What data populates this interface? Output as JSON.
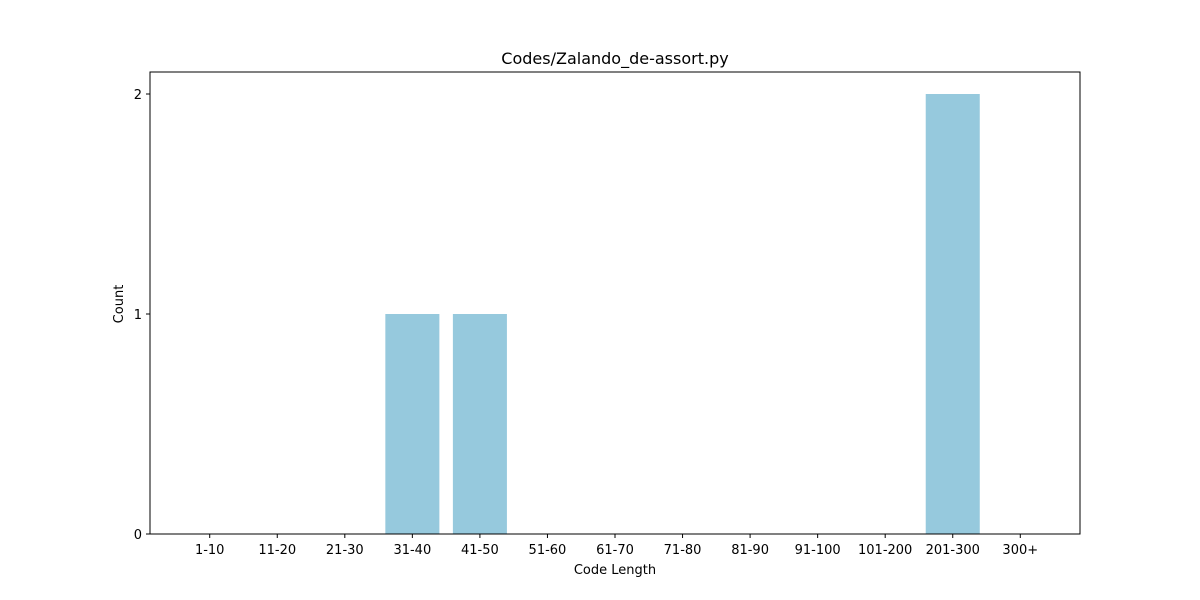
{
  "chart_data": {
    "type": "bar",
    "title": "Codes/Zalando_de-assort.py",
    "xlabel": "Code Length",
    "ylabel": "Count",
    "categories": [
      "1-10",
      "11-20",
      "21-30",
      "31-40",
      "41-50",
      "51-60",
      "61-70",
      "71-80",
      "81-90",
      "91-100",
      "101-200",
      "201-300",
      "300+"
    ],
    "values": [
      0,
      0,
      0,
      1,
      1,
      0,
      0,
      0,
      0,
      0,
      0,
      2,
      0
    ],
    "yticks": [
      0,
      1,
      2
    ],
    "ylim": [
      0,
      2.1
    ],
    "grid": false,
    "legend": "none",
    "bar_color": "#96c9dd"
  }
}
